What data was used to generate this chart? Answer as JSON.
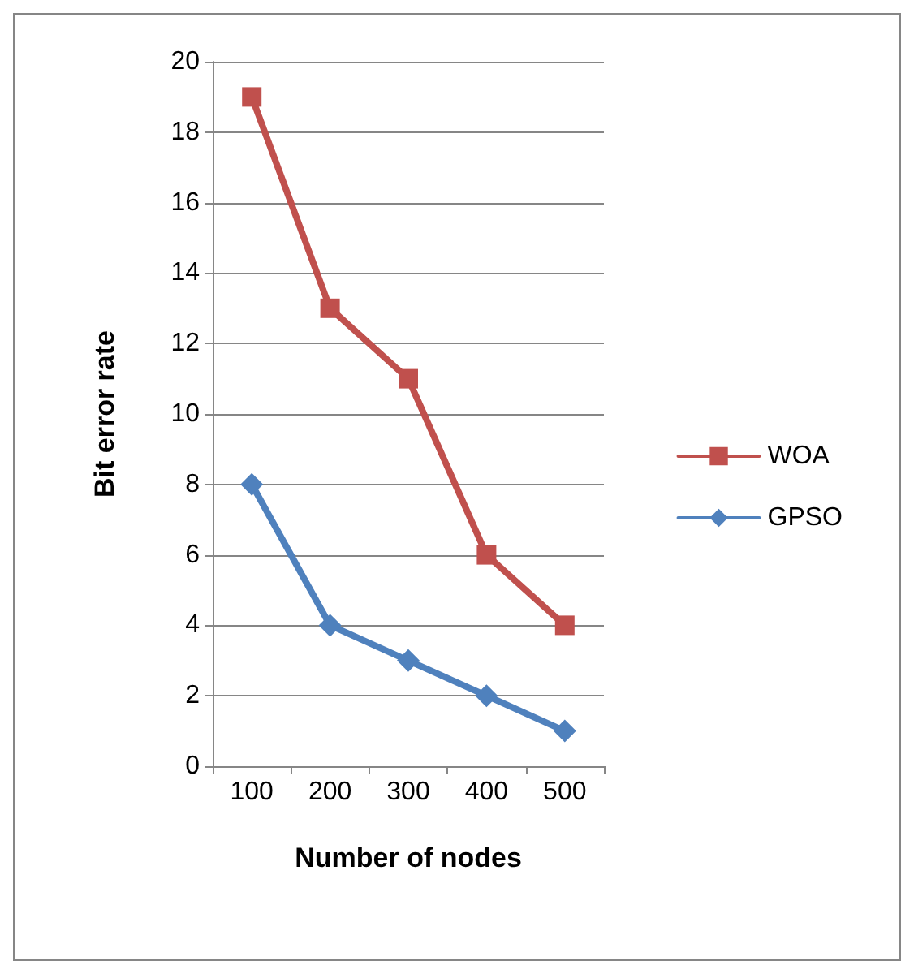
{
  "chart_data": {
    "type": "line",
    "xlabel": "Number of nodes",
    "ylabel": "Bit error rate",
    "categories": [
      "100",
      "200",
      "300",
      "400",
      "500"
    ],
    "series": [
      {
        "name": "WOA",
        "color": "#c0504d",
        "marker": "square",
        "values": [
          19,
          13,
          11,
          6,
          4
        ]
      },
      {
        "name": "GPSO",
        "color": "#4f81bd",
        "marker": "diamond",
        "values": [
          8,
          4,
          3,
          2,
          1
        ]
      }
    ],
    "ylim": [
      0,
      20
    ],
    "yticks": [
      0,
      2,
      4,
      6,
      8,
      10,
      12,
      14,
      16,
      18,
      20
    ],
    "grid": "y",
    "legend": "right",
    "line_style": "solid"
  }
}
